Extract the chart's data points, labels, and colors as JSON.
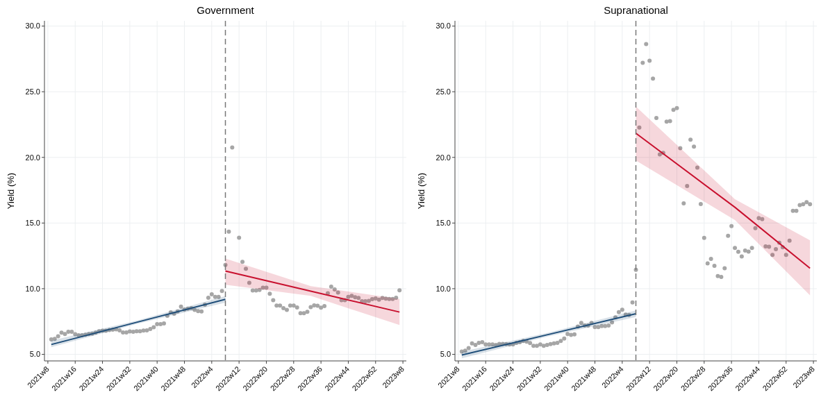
{
  "chart_data": [
    {
      "type": "scatter",
      "title": "Government",
      "ylabel": "Yield (%)",
      "ylim": [
        4.5,
        30.4
      ],
      "grid": true,
      "categories": [
        "2021w8",
        null,
        null,
        null,
        null,
        null,
        null,
        null,
        "2021w16",
        null,
        null,
        null,
        null,
        null,
        null,
        null,
        "2021w24",
        null,
        null,
        null,
        null,
        null,
        null,
        null,
        "2021w32",
        null,
        null,
        null,
        null,
        null,
        null,
        null,
        "2021w40",
        null,
        null,
        null,
        null,
        null,
        null,
        null,
        "2021w48",
        null,
        null,
        null,
        null,
        null,
        null,
        null,
        "2022w4",
        null,
        null,
        null,
        null,
        null,
        null,
        null,
        "2022w12",
        null,
        null,
        null,
        null,
        null,
        null,
        null,
        "2022w20",
        null,
        null,
        null,
        null,
        null,
        null,
        null,
        "2022w28",
        null,
        null,
        null,
        null,
        null,
        null,
        null,
        "2022w36",
        null,
        null,
        null,
        null,
        null,
        null,
        null,
        "2022w44",
        null,
        null,
        null,
        null,
        null,
        null,
        null,
        "2022w52",
        null,
        null,
        null,
        null,
        null,
        null,
        null,
        "2023w8"
      ],
      "yticks": [
        {
          "value": 5,
          "label": "5.0"
        },
        {
          "value": 10,
          "label": "10.0"
        },
        {
          "value": 15,
          "label": "15.0"
        },
        {
          "value": 20,
          "label": "20.0"
        },
        {
          "value": 25,
          "label": "25.0"
        },
        {
          "value": 30,
          "label": "30.0"
        }
      ],
      "series": [
        {
          "type": "line",
          "color": "#1f4e79",
          "values": [
            null,
            5.75,
            null,
            null,
            null,
            null,
            null,
            null,
            null,
            null,
            null,
            null,
            null,
            null,
            null,
            null,
            null,
            null,
            null,
            null,
            null,
            null,
            null,
            null,
            null,
            null,
            7.44,
            null,
            null,
            null,
            null,
            null,
            null,
            null,
            null,
            null,
            null,
            null,
            null,
            null,
            null,
            null,
            null,
            null,
            null,
            null,
            null,
            null,
            null,
            null,
            null,
            null,
            9.19,
            null,
            null,
            null,
            null,
            null,
            null,
            null,
            null,
            null,
            null,
            null,
            null,
            null,
            null,
            null,
            null,
            null,
            null,
            null,
            null,
            null,
            null,
            null,
            null,
            null,
            null,
            null,
            null,
            null,
            null,
            null,
            null,
            null,
            null,
            null,
            null,
            null,
            null,
            null,
            null,
            null,
            null,
            null,
            null,
            null,
            null,
            null,
            null,
            null,
            null,
            null,
            null
          ],
          "lower": [
            null,
            5.55,
            null,
            null,
            null,
            null,
            null,
            null,
            null,
            null,
            null,
            null,
            null,
            null,
            null,
            null,
            null,
            null,
            null,
            null,
            null,
            null,
            null,
            null,
            null,
            null,
            7.32,
            null,
            null,
            null,
            null,
            null,
            null,
            null,
            null,
            null,
            null,
            null,
            null,
            null,
            null,
            null,
            null,
            null,
            null,
            null,
            null,
            null,
            null,
            null,
            null,
            null,
            8.94,
            null,
            null,
            null,
            null,
            null,
            null,
            null,
            null,
            null,
            null,
            null,
            null,
            null,
            null,
            null,
            null,
            null,
            null,
            null,
            null,
            null,
            null,
            null,
            null,
            null,
            null,
            null,
            null,
            null,
            null,
            null,
            null,
            null,
            null,
            null,
            null,
            null,
            null,
            null,
            null,
            null,
            null,
            null,
            null,
            null,
            null,
            null,
            null,
            null,
            null,
            null,
            null
          ],
          "upper": [
            null,
            6.05,
            null,
            null,
            null,
            null,
            null,
            null,
            null,
            null,
            null,
            null,
            null,
            null,
            null,
            null,
            null,
            null,
            null,
            null,
            null,
            null,
            null,
            null,
            null,
            null,
            7.56,
            null,
            null,
            null,
            null,
            null,
            null,
            null,
            null,
            null,
            null,
            null,
            null,
            null,
            null,
            null,
            null,
            null,
            null,
            null,
            null,
            null,
            null,
            null,
            null,
            null,
            9.44,
            null,
            null,
            null,
            null,
            null,
            null,
            null,
            null,
            null,
            null,
            null,
            null,
            null,
            null,
            null,
            null,
            null,
            null,
            null,
            null,
            null,
            null,
            null,
            null,
            null,
            null,
            null,
            null,
            null,
            null,
            null,
            null,
            null,
            null,
            null,
            null,
            null,
            null,
            null,
            null,
            null,
            null,
            null,
            null,
            null,
            null,
            null,
            null,
            null,
            null,
            null,
            null
          ]
        },
        {
          "type": "line",
          "color": "#c8102e",
          "values": [
            null,
            null,
            null,
            null,
            null,
            null,
            null,
            null,
            null,
            null,
            null,
            null,
            null,
            null,
            null,
            null,
            null,
            null,
            null,
            null,
            null,
            null,
            null,
            null,
            null,
            null,
            null,
            null,
            null,
            null,
            null,
            null,
            null,
            null,
            null,
            null,
            null,
            null,
            null,
            null,
            null,
            null,
            null,
            null,
            null,
            null,
            null,
            null,
            null,
            null,
            null,
            null,
            11.34,
            null,
            null,
            null,
            null,
            null,
            null,
            null,
            null,
            null,
            null,
            null,
            null,
            null,
            null,
            null,
            null,
            null,
            null,
            null,
            null,
            null,
            null,
            null,
            null,
            9.81,
            null,
            null,
            null,
            null,
            null,
            null,
            null,
            null,
            null,
            null,
            null,
            null,
            null,
            null,
            null,
            null,
            null,
            null,
            null,
            null,
            null,
            null,
            null,
            null,
            null,
            8.22,
            null
          ],
          "lower": [
            null,
            null,
            null,
            null,
            null,
            null,
            null,
            null,
            null,
            null,
            null,
            null,
            null,
            null,
            null,
            null,
            null,
            null,
            null,
            null,
            null,
            null,
            null,
            null,
            null,
            null,
            null,
            null,
            null,
            null,
            null,
            null,
            null,
            null,
            null,
            null,
            null,
            null,
            null,
            null,
            null,
            null,
            null,
            null,
            null,
            null,
            null,
            null,
            null,
            null,
            null,
            null,
            10.3,
            null,
            null,
            null,
            null,
            null,
            null,
            null,
            null,
            null,
            null,
            null,
            null,
            null,
            null,
            null,
            null,
            null,
            null,
            null,
            null,
            null,
            null,
            null,
            null,
            9.45,
            null,
            null,
            null,
            null,
            null,
            null,
            null,
            null,
            null,
            null,
            null,
            null,
            null,
            null,
            null,
            null,
            null,
            null,
            null,
            null,
            null,
            null,
            null,
            null,
            null,
            7.23,
            null
          ],
          "upper": [
            null,
            null,
            null,
            null,
            null,
            null,
            null,
            null,
            null,
            null,
            null,
            null,
            null,
            null,
            null,
            null,
            null,
            null,
            null,
            null,
            null,
            null,
            null,
            null,
            null,
            null,
            null,
            null,
            null,
            null,
            null,
            null,
            null,
            null,
            null,
            null,
            null,
            null,
            null,
            null,
            null,
            null,
            null,
            null,
            null,
            null,
            null,
            null,
            null,
            null,
            null,
            null,
            12.3,
            null,
            null,
            null,
            null,
            null,
            null,
            null,
            null,
            null,
            null,
            null,
            null,
            null,
            null,
            null,
            null,
            null,
            null,
            null,
            null,
            null,
            null,
            null,
            null,
            10.2,
            null,
            null,
            null,
            null,
            null,
            null,
            null,
            null,
            null,
            null,
            null,
            null,
            null,
            null,
            null,
            null,
            null,
            null,
            null,
            null,
            null,
            null,
            null,
            null,
            null,
            9.22,
            null
          ]
        },
        {
          "color": "#a6a6a6",
          "marker": "circle",
          "values": [
            null,
            6.14,
            6.18,
            6.37,
            6.65,
            6.55,
            6.72,
            6.72,
            6.53,
            6.46,
            6.46,
            6.5,
            6.55,
            6.58,
            6.65,
            6.76,
            6.8,
            6.8,
            6.85,
            6.88,
            6.9,
            6.83,
            6.67,
            6.67,
            6.74,
            6.72,
            6.76,
            6.76,
            6.81,
            6.83,
            6.93,
            7.06,
            7.3,
            7.3,
            7.36,
            7.94,
            8.2,
            8.1,
            8.26,
            8.63,
            8.41,
            8.48,
            8.52,
            8.38,
            8.29,
            8.26,
            8.78,
            9.31,
            9.58,
            9.37,
            9.38,
            9.82,
            11.81,
            14.35,
            20.75,
            null,
            13.88,
            12.04,
            11.52,
            10.44,
            9.86,
            9.86,
            9.91,
            10.07,
            10.07,
            9.61,
            9.12,
            8.71,
            8.71,
            8.52,
            8.38,
            8.71,
            8.71,
            8.57,
            8.13,
            8.13,
            8.24,
            8.59,
            8.73,
            8.7,
            8.56,
            8.68,
            9.65,
            10.16,
            9.95,
            9.7,
            9.12,
            9.12,
            9.37,
            9.45,
            9.35,
            9.3,
            9.05,
            9.05,
            9.07,
            9.21,
            9.26,
            9.17,
            9.3,
            9.24,
            9.22,
            9.22,
            9.31,
            9.88,
            null
          ]
        }
      ]
    },
    {
      "type": "scatter",
      "title": "Supranational",
      "ylabel": "Yield (%)",
      "ylim": [
        4.5,
        30.4
      ],
      "grid": true,
      "categories": [
        "2021w8",
        null,
        null,
        null,
        null,
        null,
        null,
        null,
        "2021w16",
        null,
        null,
        null,
        null,
        null,
        null,
        null,
        "2021w24",
        null,
        null,
        null,
        null,
        null,
        null,
        null,
        "2021w32",
        null,
        null,
        null,
        null,
        null,
        null,
        null,
        "2021w40",
        null,
        null,
        null,
        null,
        null,
        null,
        null,
        "2021w48",
        null,
        null,
        null,
        null,
        null,
        null,
        null,
        "2022w4",
        null,
        null,
        null,
        null,
        null,
        null,
        null,
        "2022w12",
        null,
        null,
        null,
        null,
        null,
        null,
        null,
        "2022w20",
        null,
        null,
        null,
        null,
        null,
        null,
        null,
        "2022w28",
        null,
        null,
        null,
        null,
        null,
        null,
        null,
        "2022w36",
        null,
        null,
        null,
        null,
        null,
        null,
        null,
        "2022w44",
        null,
        null,
        null,
        null,
        null,
        null,
        null,
        "2022w52",
        null,
        null,
        null,
        null,
        null,
        null,
        null,
        "2023w8"
      ],
      "yticks": [
        {
          "value": 5,
          "label": "5.0"
        },
        {
          "value": 10,
          "label": "10.0"
        },
        {
          "value": 15,
          "label": "15.0"
        },
        {
          "value": 20,
          "label": "20.0"
        },
        {
          "value": 25,
          "label": "25.0"
        },
        {
          "value": 30,
          "label": "30.0"
        }
      ],
      "series": [
        {
          "type": "line",
          "color": "#1f4e79",
          "values": [
            null,
            4.95,
            null,
            null,
            null,
            null,
            null,
            null,
            null,
            null,
            null,
            null,
            null,
            null,
            null,
            null,
            null,
            null,
            null,
            null,
            null,
            null,
            null,
            null,
            null,
            null,
            6.49,
            null,
            null,
            null,
            null,
            null,
            null,
            null,
            null,
            null,
            null,
            null,
            null,
            null,
            null,
            null,
            null,
            null,
            null,
            null,
            null,
            null,
            null,
            null,
            null,
            null,
            8.09,
            null,
            null,
            null,
            null,
            null,
            null,
            null,
            null,
            null,
            null,
            null,
            null,
            null,
            null,
            null,
            null,
            null,
            null,
            null,
            null,
            null,
            null,
            null,
            null,
            null,
            null,
            null,
            null,
            null,
            null,
            null,
            null,
            null,
            null,
            null,
            null,
            null,
            null,
            null,
            null,
            null,
            null,
            null,
            null,
            null,
            null,
            null,
            null,
            null,
            null,
            null,
            null
          ],
          "lower": [
            null,
            4.7,
            null,
            null,
            null,
            null,
            null,
            null,
            null,
            null,
            null,
            null,
            null,
            null,
            null,
            null,
            null,
            null,
            null,
            null,
            null,
            null,
            null,
            null,
            null,
            null,
            6.35,
            null,
            null,
            null,
            null,
            null,
            null,
            null,
            null,
            null,
            null,
            null,
            null,
            null,
            null,
            null,
            null,
            null,
            null,
            null,
            null,
            null,
            null,
            null,
            null,
            null,
            7.84,
            null,
            null,
            null,
            null,
            null,
            null,
            null,
            null,
            null,
            null,
            null,
            null,
            null,
            null,
            null,
            null,
            null,
            null,
            null,
            null,
            null,
            null,
            null,
            null,
            null,
            null,
            null,
            null,
            null,
            null,
            null,
            null,
            null,
            null,
            null,
            null,
            null,
            null,
            null,
            null,
            null,
            null,
            null,
            null,
            null,
            null,
            null,
            null,
            null,
            null,
            null,
            null
          ],
          "upper": [
            null,
            5.2,
            null,
            null,
            null,
            null,
            null,
            null,
            null,
            null,
            null,
            null,
            null,
            null,
            null,
            null,
            null,
            null,
            null,
            null,
            null,
            null,
            null,
            null,
            null,
            null,
            6.63,
            null,
            null,
            null,
            null,
            null,
            null,
            null,
            null,
            null,
            null,
            null,
            null,
            null,
            null,
            null,
            null,
            null,
            null,
            null,
            null,
            null,
            null,
            null,
            null,
            null,
            8.34,
            null,
            null,
            null,
            null,
            null,
            null,
            null,
            null,
            null,
            null,
            null,
            null,
            null,
            null,
            null,
            null,
            null,
            null,
            null,
            null,
            null,
            null,
            null,
            null,
            null,
            null,
            null,
            null,
            null,
            null,
            null,
            null,
            null,
            null,
            null,
            null,
            null,
            null,
            null,
            null,
            null,
            null,
            null,
            null,
            null,
            null,
            null,
            null,
            null,
            null,
            null,
            null
          ]
        },
        {
          "type": "line",
          "color": "#c8102e",
          "values": [
            null,
            null,
            null,
            null,
            null,
            null,
            null,
            null,
            null,
            null,
            null,
            null,
            null,
            null,
            null,
            null,
            null,
            null,
            null,
            null,
            null,
            null,
            null,
            null,
            null,
            null,
            null,
            null,
            null,
            null,
            null,
            null,
            null,
            null,
            null,
            null,
            null,
            null,
            null,
            null,
            null,
            null,
            null,
            null,
            null,
            null,
            null,
            null,
            null,
            null,
            null,
            null,
            21.84,
            null,
            null,
            null,
            null,
            null,
            null,
            null,
            null,
            null,
            null,
            null,
            null,
            null,
            null,
            null,
            null,
            null,
            null,
            null,
            null,
            null,
            null,
            null,
            null,
            null,
            null,
            null,
            null,
            16.2,
            null,
            null,
            null,
            null,
            null,
            null,
            null,
            null,
            null,
            null,
            null,
            null,
            null,
            null,
            null,
            null,
            null,
            null,
            null,
            null,
            null,
            11.56,
            null
          ],
          "lower": [
            null,
            null,
            null,
            null,
            null,
            null,
            null,
            null,
            null,
            null,
            null,
            null,
            null,
            null,
            null,
            null,
            null,
            null,
            null,
            null,
            null,
            null,
            null,
            null,
            null,
            null,
            null,
            null,
            null,
            null,
            null,
            null,
            null,
            null,
            null,
            null,
            null,
            null,
            null,
            null,
            null,
            null,
            null,
            null,
            null,
            null,
            null,
            null,
            null,
            null,
            null,
            null,
            19.76,
            null,
            null,
            null,
            null,
            null,
            null,
            null,
            null,
            null,
            null,
            null,
            null,
            null,
            null,
            null,
            null,
            null,
            null,
            null,
            null,
            null,
            null,
            null,
            null,
            null,
            null,
            null,
            null,
            15.23,
            null,
            null,
            null,
            null,
            null,
            null,
            null,
            null,
            null,
            null,
            null,
            null,
            null,
            null,
            null,
            null,
            null,
            null,
            null,
            null,
            null,
            9.5,
            null
          ],
          "upper": [
            null,
            null,
            null,
            null,
            null,
            null,
            null,
            null,
            null,
            null,
            null,
            null,
            null,
            null,
            null,
            null,
            null,
            null,
            null,
            null,
            null,
            null,
            null,
            null,
            null,
            null,
            null,
            null,
            null,
            null,
            null,
            null,
            null,
            null,
            null,
            null,
            null,
            null,
            null,
            null,
            null,
            null,
            null,
            null,
            null,
            null,
            null,
            null,
            null,
            null,
            null,
            null,
            23.87,
            null,
            null,
            null,
            null,
            null,
            null,
            null,
            null,
            null,
            null,
            null,
            null,
            null,
            null,
            null,
            null,
            null,
            null,
            null,
            null,
            null,
            null,
            null,
            null,
            null,
            null,
            null,
            null,
            16.82,
            null,
            null,
            null,
            null,
            null,
            null,
            null,
            null,
            null,
            null,
            null,
            null,
            null,
            null,
            null,
            null,
            null,
            null,
            null,
            null,
            null,
            13.68,
            null
          ]
        },
        {
          "color": "#a6a6a6",
          "marker": "circle",
          "values": [
            null,
            5.21,
            5.28,
            5.48,
            5.83,
            5.71,
            5.88,
            5.93,
            5.76,
            5.76,
            5.76,
            5.72,
            5.79,
            5.79,
            5.78,
            5.76,
            5.76,
            5.88,
            5.93,
            6.02,
            5.97,
            5.86,
            5.65,
            5.65,
            5.76,
            5.65,
            5.72,
            5.78,
            5.83,
            5.88,
            6.02,
            6.2,
            6.55,
            6.48,
            6.52,
            7.12,
            7.4,
            7.19,
            7.19,
            7.4,
            7.08,
            7.08,
            7.15,
            7.15,
            7.19,
            7.43,
            7.82,
            8.21,
            8.4,
            8.03,
            8.0,
            8.95,
            11.44,
            22.27,
            27.2,
            28.63,
            27.36,
            26.0,
            23.0,
            20.22,
            20.34,
            22.72,
            22.76,
            23.62,
            23.75,
            20.7,
            16.5,
            17.82,
            21.35,
            20.82,
            19.22,
            16.45,
            13.87,
            11.93,
            12.27,
            11.74,
            10.96,
            10.89,
            11.56,
            14.03,
            14.77,
            13.1,
            12.81,
            12.46,
            12.9,
            12.83,
            13.1,
            14.61,
            15.37,
            15.3,
            13.22,
            13.2,
            12.57,
            13.01,
            13.5,
            13.15,
            12.57,
            13.66,
            15.93,
            15.93,
            16.36,
            16.43,
            16.59,
            16.43,
            null
          ]
        }
      ]
    }
  ]
}
